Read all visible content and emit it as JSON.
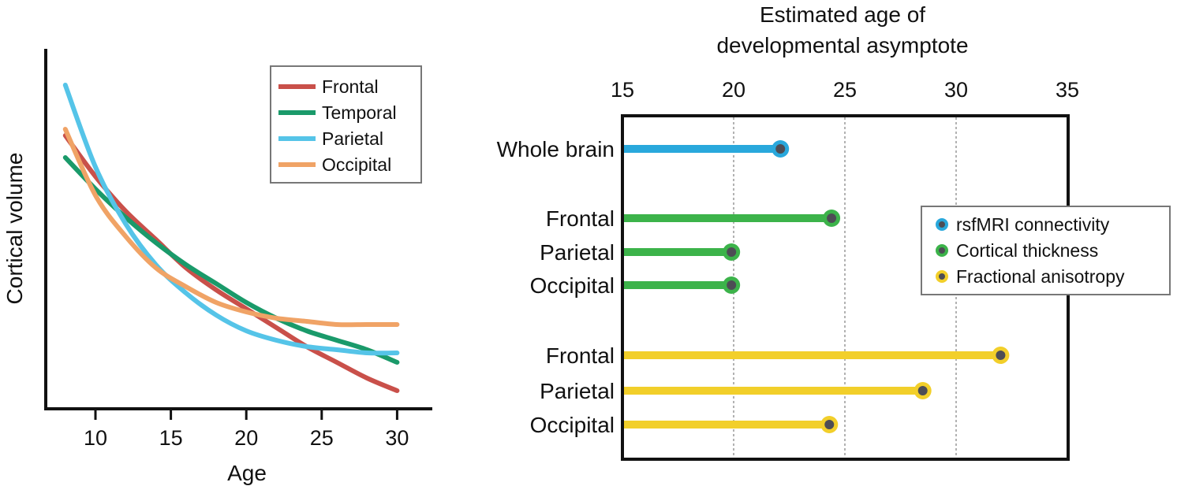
{
  "chart_data": [
    {
      "type": "line",
      "xlabel": "Age",
      "ylabel": "Cortical volume",
      "xlim": [
        7,
        32
      ],
      "ylim": [
        0,
        100
      ],
      "xticks": [
        10,
        15,
        20,
        25,
        30
      ],
      "show_yticks": false,
      "grid": false,
      "legend_position": "top-right",
      "x": [
        8,
        10,
        12,
        14,
        16,
        18,
        20,
        22,
        24,
        26,
        28,
        30
      ],
      "series": [
        {
          "name": "Frontal",
          "color": "#c9504a",
          "values": [
            82,
            69,
            58,
            49,
            40,
            33,
            27,
            21,
            15,
            10,
            5,
            1
          ]
        },
        {
          "name": "Temporal",
          "color": "#1a9a6a",
          "values": [
            75,
            65,
            56,
            48,
            41,
            35,
            29,
            24,
            20,
            17,
            14,
            10
          ]
        },
        {
          "name": "Parietal",
          "color": "#55c4e8",
          "values": [
            98,
            72,
            54,
            41,
            32,
            25,
            20,
            17,
            15,
            14,
            13,
            13
          ]
        },
        {
          "name": "Occipital",
          "color": "#f0a366",
          "values": [
            84,
            63,
            50,
            40,
            34,
            29,
            26,
            24,
            23,
            22,
            22,
            22
          ]
        }
      ]
    },
    {
      "type": "bar",
      "orientation": "horizontal",
      "style": "lollipop",
      "title": "Estimated age of developmental asymptote",
      "title_lines": [
        "Estimated age of",
        "developmental asymptote"
      ],
      "xlim": [
        15,
        35
      ],
      "xticks": [
        15,
        20,
        25,
        30,
        35
      ],
      "grid": true,
      "legend_position": "right",
      "categories": [
        "Whole brain",
        "Frontal",
        "Parietal",
        "Occipital",
        "Frontal",
        "Parietal",
        "Occipital"
      ],
      "values": [
        22.1,
        24.4,
        19.9,
        19.9,
        32.0,
        28.5,
        24.3
      ],
      "series_index": [
        0,
        1,
        1,
        1,
        2,
        2,
        2
      ],
      "series": [
        {
          "name": "rsfMRI connectivity",
          "color": "#29a8dc"
        },
        {
          "name": "Cortical thickness",
          "color": "#3cb34a"
        },
        {
          "name": "Fractional anisotropy",
          "color": "#f2cf2a"
        }
      ]
    }
  ]
}
